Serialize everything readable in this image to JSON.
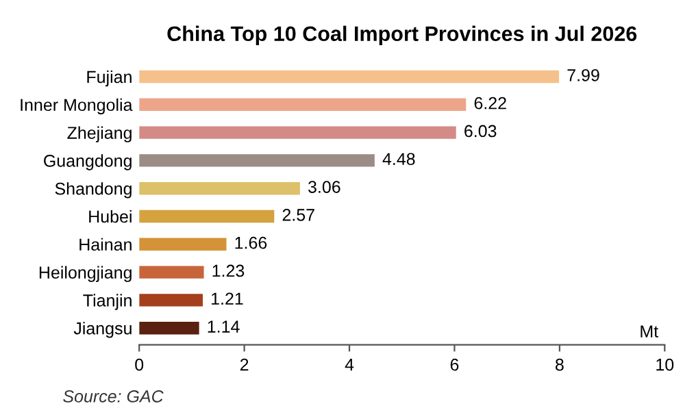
{
  "chart_data": {
    "type": "bar",
    "orientation": "horizontal",
    "title": "China Top 10 Coal Import Provinces in Jul 2026",
    "xlabel": "Mt",
    "categories": [
      "Fujian",
      "Inner Mongolia",
      "Zhejiang",
      "Guangdong",
      "Shandong",
      "Hubei",
      "Hainan",
      "Heilongjiang",
      "Tianjin",
      "Jiangsu"
    ],
    "values": [
      7.99,
      6.22,
      6.03,
      4.48,
      3.06,
      2.57,
      1.66,
      1.23,
      1.21,
      1.14
    ],
    "colors": [
      "#f5c08a",
      "#eda58a",
      "#d48a87",
      "#9c8c86",
      "#dcc06a",
      "#d4a23e",
      "#d49339",
      "#c8643a",
      "#a4401e",
      "#5a2010"
    ],
    "xlim": [
      0,
      10
    ],
    "xticks": [
      0,
      2,
      4,
      6,
      8,
      10
    ],
    "data_labels": true,
    "grid": false,
    "legend": false,
    "annotations": [
      "Source: GAC"
    ]
  }
}
